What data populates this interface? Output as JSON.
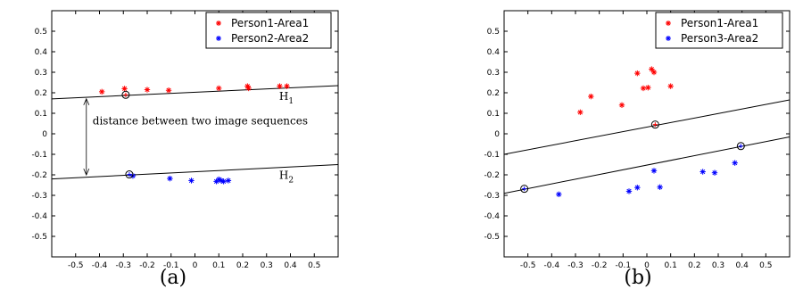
{
  "chart_data": [
    {
      "type": "scatter",
      "panel_label": "(a)",
      "xlim": [
        -0.6,
        0.6
      ],
      "ylim": [
        -0.6,
        0.6
      ],
      "xticks": [
        -0.5,
        -0.4,
        -0.3,
        -0.2,
        -0.1,
        0,
        0.1,
        0.2,
        0.3,
        0.4,
        0.5
      ],
      "yticks": [
        -0.5,
        -0.4,
        -0.3,
        -0.2,
        -0.1,
        0,
        0.1,
        0.2,
        0.3,
        0.4,
        0.5
      ],
      "grid": false,
      "legend": "top-right",
      "series": [
        {
          "name": "Person1-Area1",
          "color": "#ff0000",
          "points": [
            [
              -0.39,
              0.205
            ],
            [
              -0.295,
              0.22
            ],
            [
              -0.2,
              0.215
            ],
            [
              -0.11,
              0.212
            ],
            [
              0.1,
              0.222
            ],
            [
              0.22,
              0.232
            ],
            [
              0.225,
              0.222
            ],
            [
              0.355,
              0.232
            ],
            [
              0.385,
              0.232
            ]
          ]
        },
        {
          "name": "Person2-Area2",
          "color": "#0000ff",
          "points": [
            [
              -0.26,
              -0.205
            ],
            [
              -0.105,
              -0.218
            ],
            [
              -0.015,
              -0.228
            ],
            [
              0.09,
              -0.232
            ],
            [
              0.1,
              -0.222
            ],
            [
              0.11,
              -0.228
            ],
            [
              0.12,
              -0.232
            ],
            [
              0.14,
              -0.228
            ]
          ]
        }
      ],
      "support_points": [
        [
          -0.29,
          0.19
        ],
        [
          -0.275,
          -0.198
        ]
      ],
      "lines": [
        {
          "label": "H1",
          "x": [
            -0.6,
            0.6
          ],
          "y": [
            0.17,
            0.235
          ]
        },
        {
          "label": "H2",
          "x": [
            -0.6,
            0.6
          ],
          "y": [
            -0.22,
            -0.15
          ]
        }
      ],
      "annotation": {
        "text": "distance between two image sequences",
        "x": -0.455,
        "y1": 0.175,
        "y2": -0.205
      }
    },
    {
      "type": "scatter",
      "panel_label": "(b)",
      "xlim": [
        -0.6,
        0.6
      ],
      "ylim": [
        -0.6,
        0.6
      ],
      "xticks": [
        -0.5,
        -0.4,
        -0.3,
        -0.2,
        -0.1,
        0,
        0.1,
        0.2,
        0.3,
        0.4,
        0.5
      ],
      "yticks": [
        -0.5,
        -0.4,
        -0.3,
        -0.2,
        -0.1,
        0,
        0.1,
        0.2,
        0.3,
        0.4,
        0.5
      ],
      "grid": false,
      "legend": "top-right",
      "series": [
        {
          "name": "Person1-Area1",
          "color": "#ff0000",
          "points": [
            [
              -0.28,
              0.105
            ],
            [
              -0.235,
              0.182
            ],
            [
              -0.105,
              0.14
            ],
            [
              -0.04,
              0.295
            ],
            [
              -0.015,
              0.222
            ],
            [
              0.005,
              0.225
            ],
            [
              0.02,
              0.315
            ],
            [
              0.03,
              0.3
            ],
            [
              0.1,
              0.232
            ]
          ]
        },
        {
          "name": "Person3-Area2",
          "color": "#0000ff",
          "points": [
            [
              -0.37,
              -0.295
            ],
            [
              -0.075,
              -0.28
            ],
            [
              -0.04,
              -0.262
            ],
            [
              0.03,
              -0.18
            ],
            [
              0.055,
              -0.26
            ],
            [
              0.235,
              -0.185
            ],
            [
              0.285,
              -0.19
            ],
            [
              0.37,
              -0.142
            ]
          ]
        }
      ],
      "support_points": [
        [
          0.035,
          0.045
        ],
        [
          -0.515,
          -0.268
        ],
        [
          0.395,
          -0.06
        ]
      ],
      "lines": [
        {
          "label": "",
          "x": [
            -0.6,
            0.6
          ],
          "y": [
            -0.1,
            0.165
          ]
        },
        {
          "label": "",
          "x": [
            -0.6,
            0.6
          ],
          "y": [
            -0.29,
            -0.015
          ]
        }
      ]
    }
  ]
}
